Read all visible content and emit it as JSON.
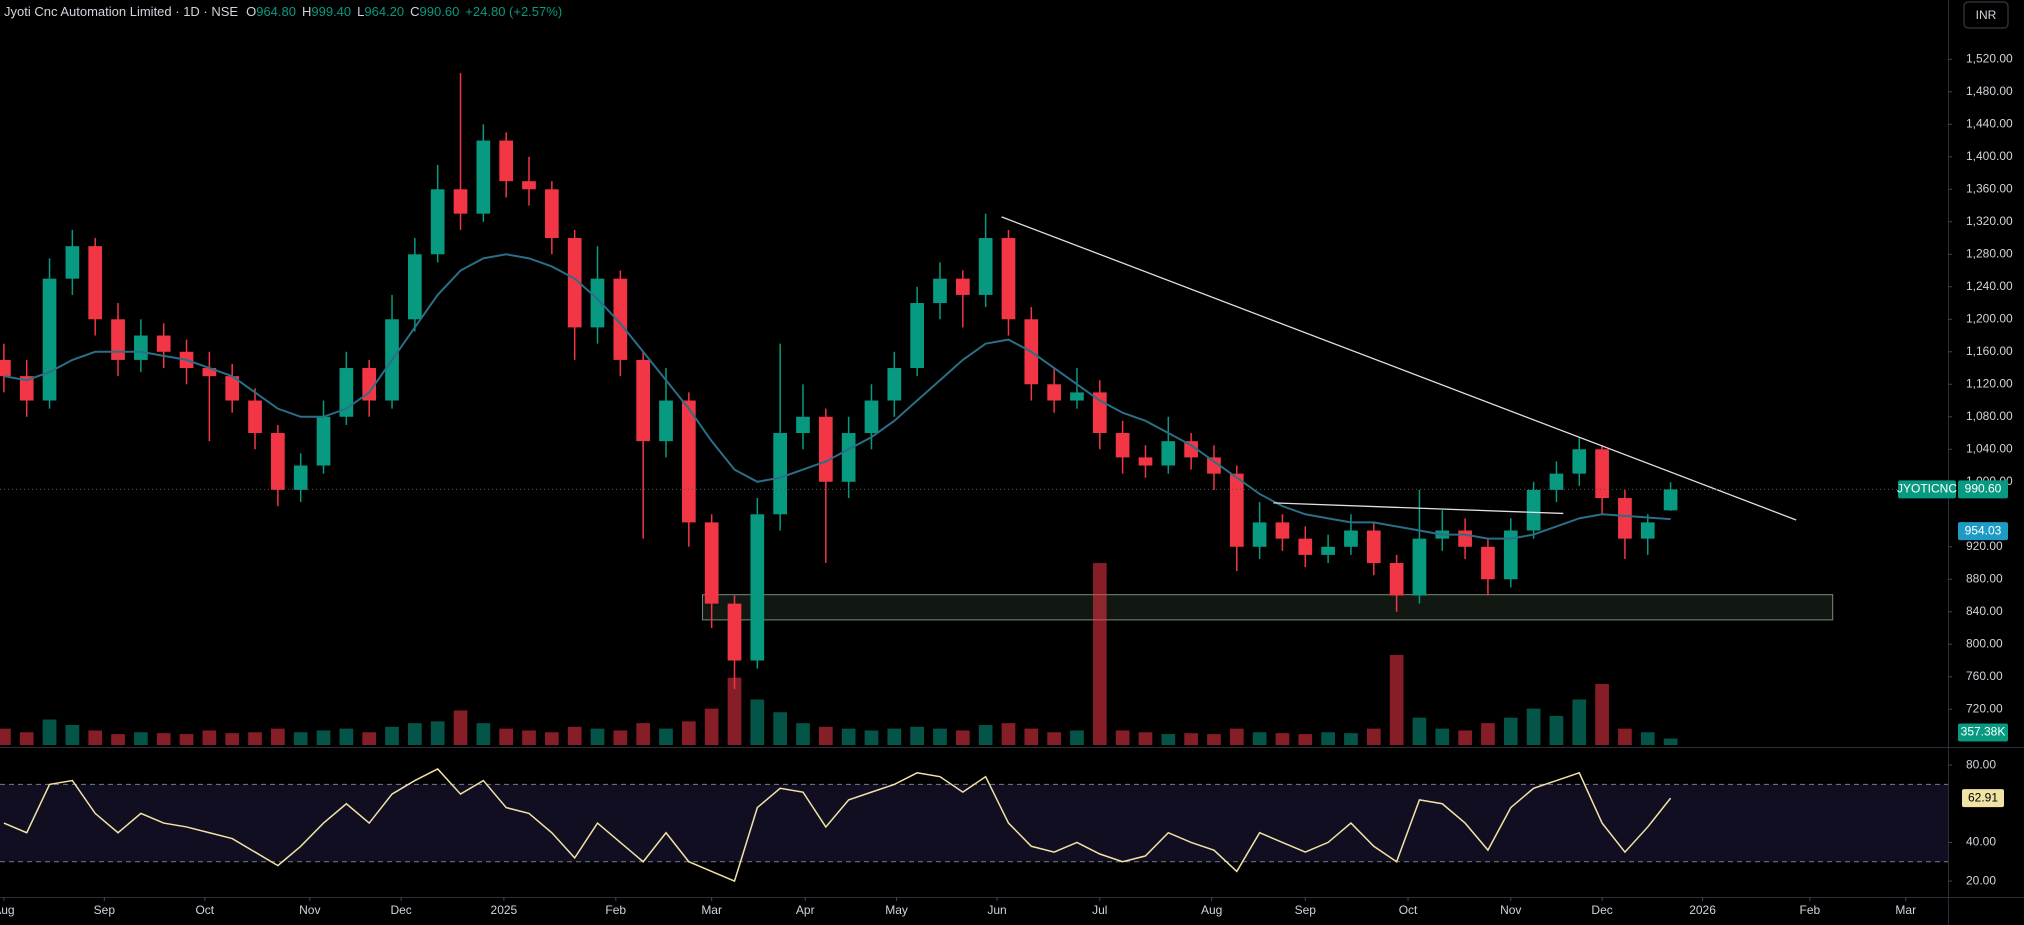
{
  "header": {
    "symbol": "Jyoti Cnc Automation Limited · 1D · NSE",
    "o_key": "O",
    "o": "964.80",
    "h_key": "H",
    "h": "999.40",
    "l_key": "L",
    "l": "964.20",
    "c_key": "C",
    "c": "990.60",
    "change": "+24.80 (+2.57%)",
    "currency": "INR"
  },
  "chart_data": {
    "type": "candlestick",
    "ticker": "JYOTICNC",
    "up_color": "#089981",
    "down_color": "#f23645",
    "ma_color": "#2a6f87",
    "rsi_color": "#f1e3a6",
    "xlim": [
      -0.17,
      85.15
    ],
    "xticks": [
      {
        "value": 0,
        "label": "Aug"
      },
      {
        "value": 4.4,
        "label": "Sep"
      },
      {
        "value": 8.8,
        "label": "Oct"
      },
      {
        "value": 13.4,
        "label": "Nov"
      },
      {
        "value": 17.4,
        "label": "Dec"
      },
      {
        "value": 21.9,
        "label": "2025"
      },
      {
        "value": 26.8,
        "label": "Feb"
      },
      {
        "value": 31,
        "label": "Mar"
      },
      {
        "value": 35.1,
        "label": "Apr"
      },
      {
        "value": 39.1,
        "label": "May"
      },
      {
        "value": 43.5,
        "label": "Jun"
      },
      {
        "value": 48,
        "label": "Jul"
      },
      {
        "value": 52.9,
        "label": "Aug"
      },
      {
        "value": 57,
        "label": "Sep"
      },
      {
        "value": 61.5,
        "label": "Oct"
      },
      {
        "value": 66,
        "label": "Nov"
      },
      {
        "value": 70,
        "label": "Dec"
      },
      {
        "value": 74.4,
        "label": "2026"
      },
      {
        "value": 79.1,
        "label": "Feb"
      },
      {
        "value": 83.3,
        "label": "Mar"
      }
    ],
    "ylim": [
      676,
      1593
    ],
    "yticks": [
      {
        "value": 720,
        "label": "720.00"
      },
      {
        "value": 760,
        "label": "760.00"
      },
      {
        "value": 800,
        "label": "800.00"
      },
      {
        "value": 840,
        "label": "840.00"
      },
      {
        "value": 880,
        "label": "880.00"
      },
      {
        "value": 920,
        "label": "920.00"
      },
      {
        "value": 1000,
        "label": "1,000.00"
      },
      {
        "value": 1040,
        "label": "1,040.00"
      },
      {
        "value": 1080,
        "label": "1,080.00"
      },
      {
        "value": 1120,
        "label": "1,120.00"
      },
      {
        "value": 1160,
        "label": "1,160.00"
      },
      {
        "value": 1200,
        "label": "1,200.00"
      },
      {
        "value": 1240,
        "label": "1,240.00"
      },
      {
        "value": 1280,
        "label": "1,280.00"
      },
      {
        "value": 1320,
        "label": "1,320.00"
      },
      {
        "value": 1360,
        "label": "1,360.00"
      },
      {
        "value": 1400,
        "label": "1,400.00"
      },
      {
        "value": 1440,
        "label": "1,440.00"
      },
      {
        "value": 1480,
        "label": "1,480.00"
      },
      {
        "value": 1520,
        "label": "1,520.00"
      }
    ],
    "ohlc": [
      [
        1150,
        1170,
        1110,
        1130
      ],
      [
        1130,
        1150,
        1080,
        1100
      ],
      [
        1100,
        1275,
        1090,
        1250
      ],
      [
        1250,
        1310,
        1230,
        1290
      ],
      [
        1290,
        1300,
        1180,
        1200
      ],
      [
        1200,
        1220,
        1130,
        1150
      ],
      [
        1150,
        1200,
        1135,
        1180
      ],
      [
        1180,
        1195,
        1140,
        1160
      ],
      [
        1160,
        1175,
        1120,
        1140
      ],
      [
        1140,
        1160,
        1050,
        1130
      ],
      [
        1130,
        1145,
        1085,
        1100
      ],
      [
        1100,
        1115,
        1040,
        1060
      ],
      [
        1060,
        1070,
        970,
        990
      ],
      [
        990,
        1035,
        975,
        1020
      ],
      [
        1020,
        1100,
        1010,
        1080
      ],
      [
        1080,
        1160,
        1070,
        1140
      ],
      [
        1140,
        1150,
        1080,
        1100
      ],
      [
        1100,
        1230,
        1090,
        1200
      ],
      [
        1200,
        1300,
        1185,
        1280
      ],
      [
        1280,
        1390,
        1270,
        1360
      ],
      [
        1360,
        1503,
        1310,
        1330
      ],
      [
        1330,
        1440,
        1320,
        1420
      ],
      [
        1420,
        1430,
        1350,
        1370
      ],
      [
        1370,
        1400,
        1340,
        1360
      ],
      [
        1360,
        1370,
        1280,
        1300
      ],
      [
        1300,
        1310,
        1150,
        1190
      ],
      [
        1190,
        1290,
        1170,
        1250
      ],
      [
        1250,
        1260,
        1130,
        1150
      ],
      [
        1150,
        1160,
        930,
        1050
      ],
      [
        1050,
        1140,
        1030,
        1100
      ],
      [
        1100,
        1110,
        920,
        950
      ],
      [
        950,
        960,
        820,
        850
      ],
      [
        850,
        860,
        745,
        780
      ],
      [
        780,
        980,
        770,
        960
      ],
      [
        960,
        1170,
        940,
        1060
      ],
      [
        1060,
        1120,
        1040,
        1080
      ],
      [
        1080,
        1090,
        900,
        1000
      ],
      [
        1000,
        1080,
        980,
        1060
      ],
      [
        1060,
        1120,
        1040,
        1100
      ],
      [
        1100,
        1160,
        1080,
        1140
      ],
      [
        1140,
        1240,
        1130,
        1220
      ],
      [
        1220,
        1270,
        1200,
        1250
      ],
      [
        1250,
        1260,
        1190,
        1230
      ],
      [
        1230,
        1330,
        1215,
        1300
      ],
      [
        1300,
        1310,
        1180,
        1200
      ],
      [
        1200,
        1215,
        1100,
        1120
      ],
      [
        1120,
        1140,
        1085,
        1100
      ],
      [
        1100,
        1140,
        1090,
        1110
      ],
      [
        1110,
        1125,
        1040,
        1060
      ],
      [
        1060,
        1075,
        1010,
        1030
      ],
      [
        1030,
        1045,
        1005,
        1020
      ],
      [
        1020,
        1080,
        1010,
        1050
      ],
      [
        1050,
        1060,
        1015,
        1030
      ],
      [
        1030,
        1045,
        990,
        1010
      ],
      [
        1010,
        1020,
        890,
        920
      ],
      [
        920,
        975,
        905,
        950
      ],
      [
        950,
        960,
        915,
        930
      ],
      [
        930,
        945,
        895,
        910
      ],
      [
        910,
        935,
        900,
        920
      ],
      [
        920,
        960,
        910,
        940
      ],
      [
        940,
        950,
        885,
        900
      ],
      [
        900,
        910,
        840,
        860
      ],
      [
        860,
        990,
        850,
        930
      ],
      [
        930,
        965,
        915,
        940
      ],
      [
        940,
        955,
        905,
        920
      ],
      [
        920,
        930,
        860,
        880
      ],
      [
        880,
        955,
        870,
        940
      ],
      [
        940,
        1000,
        930,
        990
      ],
      [
        990,
        1025,
        975,
        1010
      ],
      [
        1010,
        1055,
        995,
        1040
      ],
      [
        1040,
        1045,
        960,
        980
      ],
      [
        980,
        990,
        905,
        930
      ],
      [
        930,
        960,
        910,
        950
      ],
      [
        964.8,
        999.4,
        964.2,
        990.6
      ]
    ],
    "ma": [
      1130,
      1125,
      1135,
      1150,
      1160,
      1160,
      1160,
      1155,
      1150,
      1140,
      1130,
      1110,
      1090,
      1080,
      1080,
      1090,
      1110,
      1150,
      1190,
      1230,
      1260,
      1275,
      1280,
      1275,
      1265,
      1250,
      1225,
      1195,
      1160,
      1125,
      1090,
      1050,
      1015,
      1000,
      1005,
      1015,
      1025,
      1040,
      1055,
      1075,
      1100,
      1125,
      1150,
      1170,
      1175,
      1160,
      1140,
      1120,
      1100,
      1085,
      1075,
      1060,
      1045,
      1025,
      1005,
      985,
      970,
      960,
      955,
      950,
      950,
      945,
      940,
      935,
      935,
      930,
      930,
      935,
      945,
      955,
      960,
      958,
      956,
      954.03
    ],
    "last_price": {
      "value": 990.6,
      "label": "990.60"
    },
    "last_ma": {
      "value": 954.03,
      "label": "954.03"
    },
    "volume_lim": [
      0,
      37700
    ],
    "volume": [
      900,
      700,
      1400,
      1100,
      800,
      600,
      700,
      650,
      600,
      800,
      650,
      700,
      900,
      700,
      800,
      900,
      700,
      1000,
      1200,
      1300,
      1900,
      1200,
      900,
      800,
      700,
      1000,
      900,
      800,
      1200,
      900,
      1300,
      2000,
      3700,
      2500,
      1800,
      1200,
      1000,
      900,
      800,
      900,
      1000,
      900,
      800,
      1100,
      1200,
      900,
      700,
      800,
      10000,
      800,
      700,
      600,
      650,
      600,
      900,
      700,
      650,
      600,
      700,
      650,
      900,
      4950,
      1500,
      900,
      800,
      1200,
      1500,
      2000,
      1600,
      2500,
      3350,
      900,
      700,
      357.38
    ],
    "last_volume": {
      "value": 357.38,
      "label": "357.38K"
    },
    "rsi_lim": [
      12.8,
      87.8
    ],
    "rsi_ticks": [
      {
        "value": 80,
        "label": "80.00"
      },
      {
        "value": 40,
        "label": "40.00"
      },
      {
        "value": 20,
        "label": "20.00"
      }
    ],
    "rsi_levels": [
      70,
      30
    ],
    "rsi": [
      50,
      45,
      70,
      72,
      55,
      45,
      55,
      50,
      48,
      45,
      42,
      35,
      28,
      38,
      50,
      60,
      50,
      65,
      72,
      78,
      65,
      72,
      58,
      55,
      45,
      32,
      50,
      40,
      30,
      45,
      30,
      25,
      20,
      58,
      68,
      66,
      48,
      62,
      66,
      70,
      76,
      74,
      66,
      74,
      50,
      38,
      35,
      40,
      34,
      30,
      33,
      45,
      40,
      36,
      25,
      45,
      40,
      35,
      40,
      50,
      38,
      30,
      62,
      60,
      50,
      36,
      58,
      68,
      72,
      76,
      50,
      35,
      48,
      62.91
    ],
    "trendline": [
      [
        43.7,
        1326
      ],
      [
        78.5,
        953
      ]
    ],
    "neckline": [
      [
        55.6,
        974
      ],
      [
        68.3,
        961
      ]
    ],
    "zone": [
      [
        30.6,
        861
      ],
      [
        80.1,
        830
      ]
    ]
  }
}
